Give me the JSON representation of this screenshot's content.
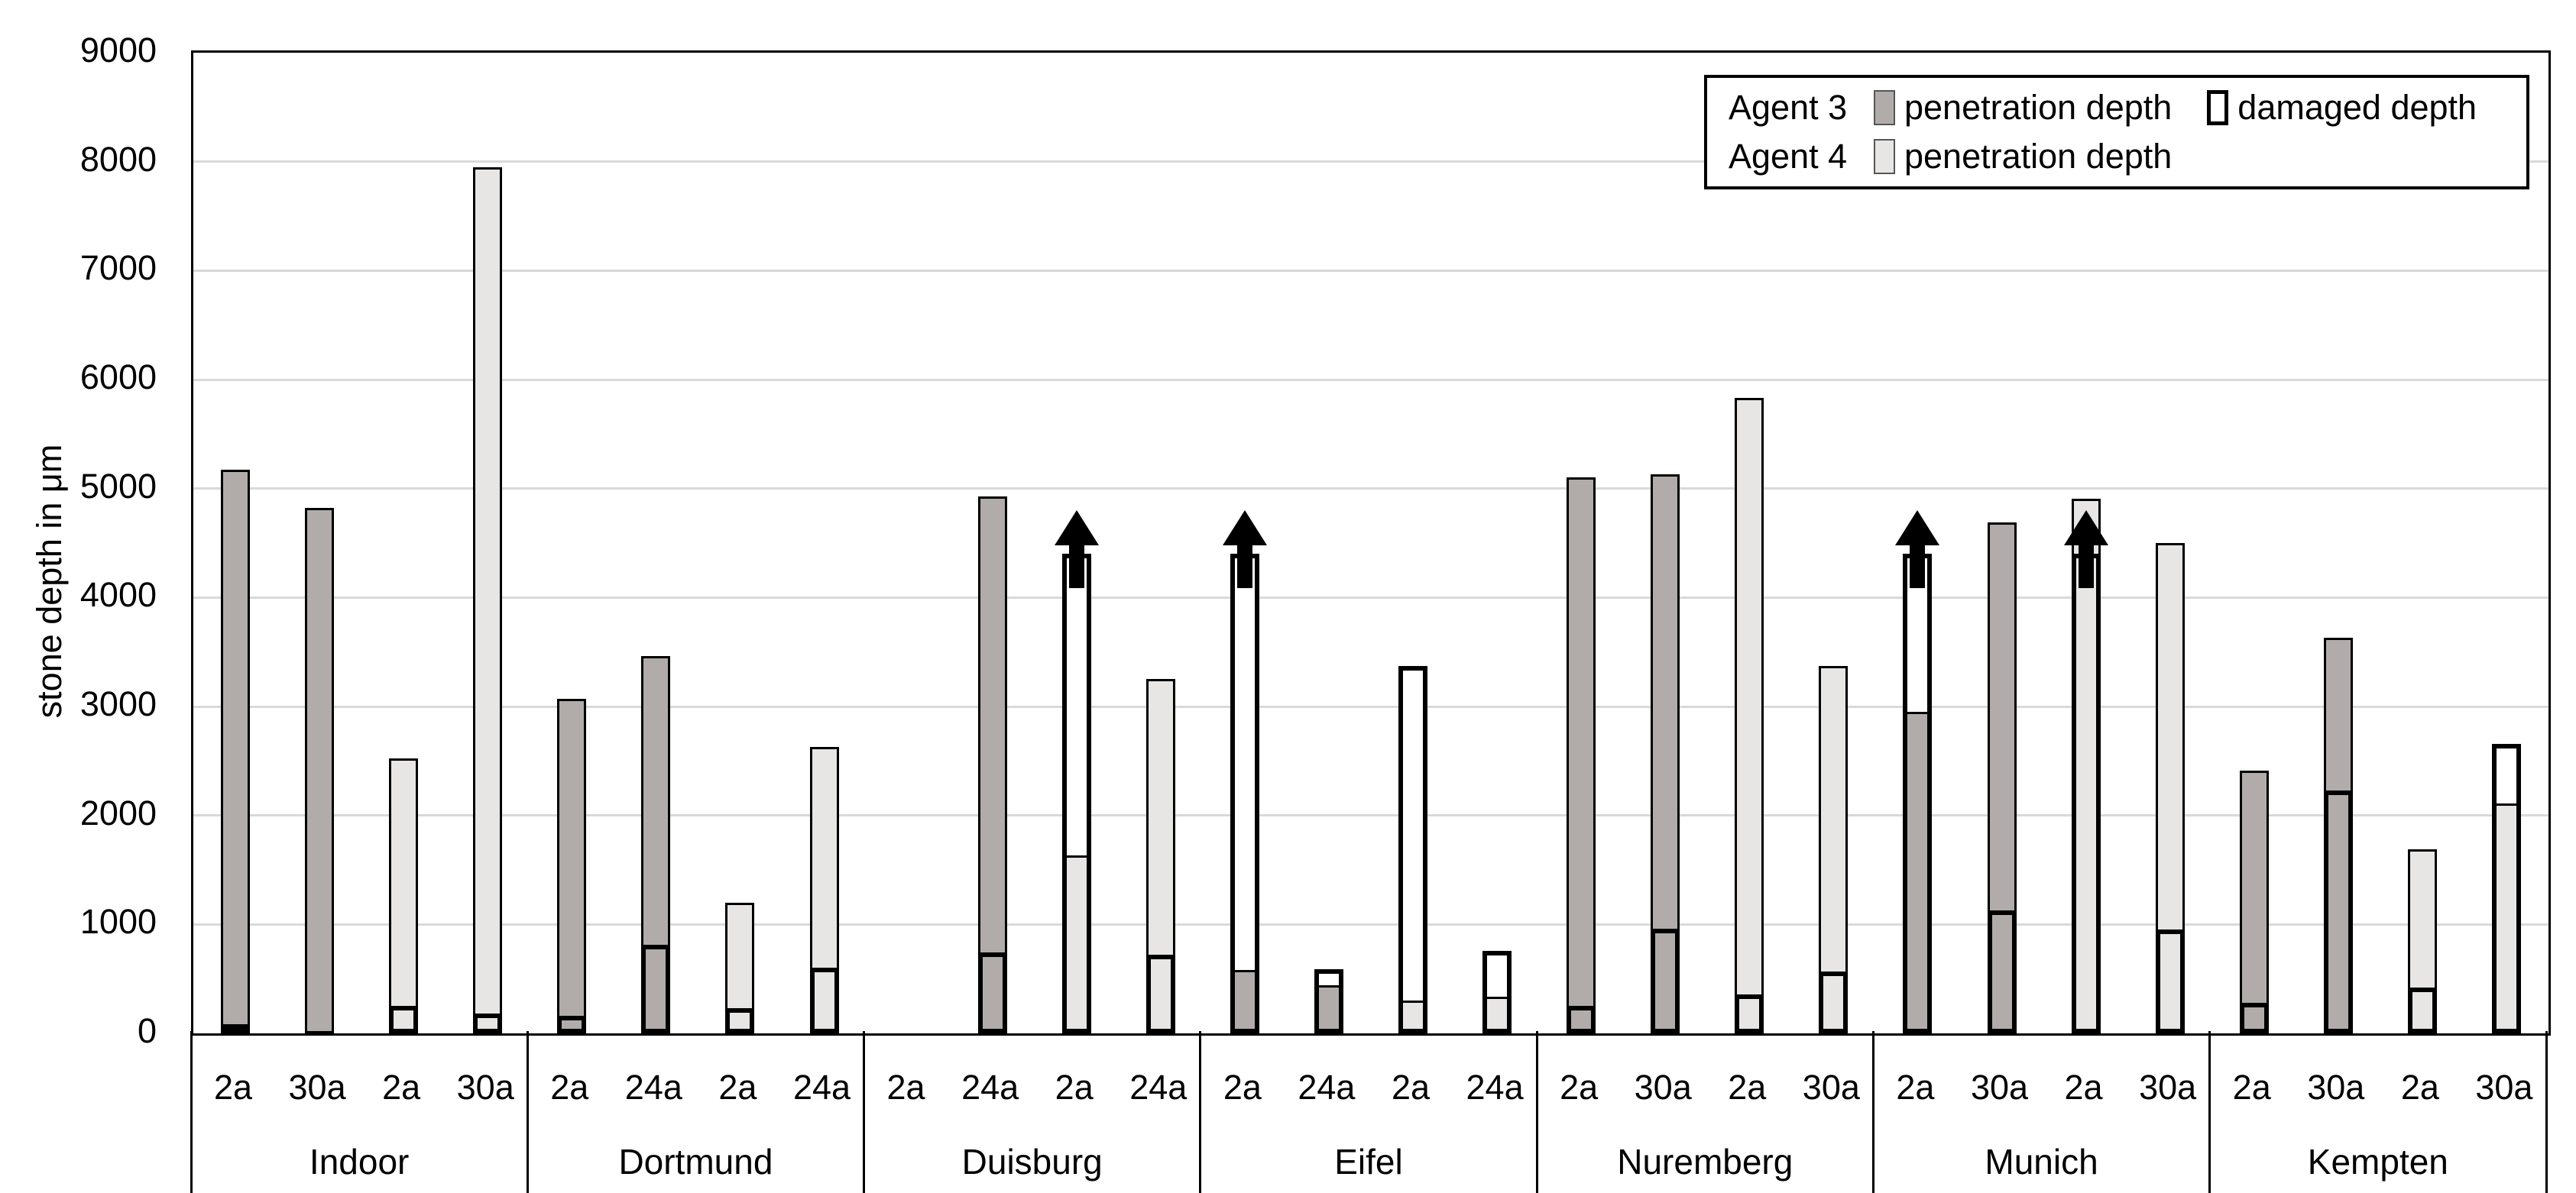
{
  "chart_data": {
    "type": "bar",
    "title": "",
    "ylabel": "stone depth in μm",
    "ylim": [
      0,
      9000
    ],
    "ytick_step": 1000,
    "yticks": [
      0,
      1000,
      2000,
      3000,
      4000,
      5000,
      6000,
      7000,
      8000,
      9000
    ],
    "unit": "μm",
    "grid": true,
    "legend_position": "top-right",
    "legend": {
      "rows": [
        {
          "agent": "Agent 3",
          "items": [
            {
              "series": "agent3_penetration",
              "swatch": "swatch-pen3",
              "label": "penetration depth"
            },
            {
              "series": "damaged",
              "swatch": "swatch-dam",
              "label": "damaged depth"
            }
          ]
        },
        {
          "agent": "Agent 4",
          "items": [
            {
              "series": "agent4_penetration",
              "swatch": "swatch-pen4",
              "label": "penetration depth"
            }
          ]
        }
      ]
    },
    "colors": {
      "agent3_fill": "#b1acaa",
      "agent4_fill": "#e7e6e5",
      "damaged_fill": "#ffffff",
      "outline": "#000000",
      "gridline": "#d9d9d9"
    },
    "groups": [
      {
        "location": "Indoor",
        "bars": [
          {
            "exposure": "2a",
            "agent": "Agent 3",
            "penetration_depth": 5170,
            "damaged_depth": 70,
            "damage_exceeds": false
          },
          {
            "exposure": "30a",
            "agent": "Agent 3",
            "penetration_depth": 4820,
            "damaged_depth": null,
            "damage_exceeds": false
          },
          {
            "exposure": "2a",
            "agent": "Agent 4",
            "penetration_depth": 2520,
            "damaged_depth": 250,
            "damage_exceeds": false
          },
          {
            "exposure": "30a",
            "agent": "Agent 4",
            "penetration_depth": 7950,
            "damaged_depth": 180,
            "damage_exceeds": false
          }
        ]
      },
      {
        "location": "Dortmund",
        "bars": [
          {
            "exposure": "2a",
            "agent": "Agent 3",
            "penetration_depth": 3070,
            "damaged_depth": 160,
            "damage_exceeds": false
          },
          {
            "exposure": "24a",
            "agent": "Agent 3",
            "penetration_depth": 3460,
            "damaged_depth": 810,
            "damage_exceeds": false
          },
          {
            "exposure": "2a",
            "agent": "Agent 4",
            "penetration_depth": 1200,
            "damaged_depth": 230,
            "damage_exceeds": false
          },
          {
            "exposure": "24a",
            "agent": "Agent 4",
            "penetration_depth": 2630,
            "damaged_depth": 600,
            "damage_exceeds": false
          }
        ]
      },
      {
        "location": "Duisburg",
        "bars": [
          {
            "exposure": "2a",
            "agent": "Agent 3",
            "penetration_depth": null,
            "damaged_depth": null,
            "damage_exceeds": false
          },
          {
            "exposure": "24a",
            "agent": "Agent 3",
            "penetration_depth": 4930,
            "damaged_depth": 740,
            "damage_exceeds": false
          },
          {
            "exposure": "2a",
            "agent": "Agent 4",
            "penetration_depth": 1630,
            "damaged_depth": 4400,
            "damage_exceeds": true
          },
          {
            "exposure": "24a",
            "agent": "Agent 4",
            "penetration_depth": 3250,
            "damaged_depth": 720,
            "damage_exceeds": false
          }
        ]
      },
      {
        "location": "Eifel",
        "bars": [
          {
            "exposure": "2a",
            "agent": "Agent 3",
            "penetration_depth": 580,
            "damaged_depth": 4400,
            "damage_exceeds": true
          },
          {
            "exposure": "24a",
            "agent": "Agent 3",
            "penetration_depth": 440,
            "damaged_depth": 590,
            "damage_exceeds": false
          },
          {
            "exposure": "2a",
            "agent": "Agent 4",
            "penetration_depth": 300,
            "damaged_depth": 3370,
            "damage_exceeds": false
          },
          {
            "exposure": "24a",
            "agent": "Agent 4",
            "penetration_depth": 340,
            "damaged_depth": 760,
            "damage_exceeds": false
          }
        ]
      },
      {
        "location": "Nuremberg",
        "bars": [
          {
            "exposure": "2a",
            "agent": "Agent 3",
            "penetration_depth": 5100,
            "damaged_depth": 250,
            "damage_exceeds": false
          },
          {
            "exposure": "30a",
            "agent": "Agent 3",
            "penetration_depth": 5130,
            "damaged_depth": 960,
            "damage_exceeds": false
          },
          {
            "exposure": "2a",
            "agent": "Agent 4",
            "penetration_depth": 5830,
            "damaged_depth": 360,
            "damage_exceeds": false
          },
          {
            "exposure": "30a",
            "agent": "Agent 4",
            "penetration_depth": 3370,
            "damaged_depth": 570,
            "damage_exceeds": false
          }
        ]
      },
      {
        "location": "Munich",
        "bars": [
          {
            "exposure": "2a",
            "agent": "Agent 3",
            "penetration_depth": 2950,
            "damaged_depth": 4400,
            "damage_exceeds": true
          },
          {
            "exposure": "30a",
            "agent": "Agent 3",
            "penetration_depth": 4690,
            "damaged_depth": 1130,
            "damage_exceeds": false
          },
          {
            "exposure": "2a",
            "agent": "Agent 4",
            "penetration_depth": 4910,
            "damaged_depth": 4400,
            "damage_exceeds": true
          },
          {
            "exposure": "30a",
            "agent": "Agent 4",
            "penetration_depth": 4500,
            "damaged_depth": 950,
            "damage_exceeds": false
          }
        ]
      },
      {
        "location": "Kempten",
        "bars": [
          {
            "exposure": "2a",
            "agent": "Agent 3",
            "penetration_depth": 2410,
            "damaged_depth": 280,
            "damage_exceeds": false
          },
          {
            "exposure": "30a",
            "agent": "Agent 3",
            "penetration_depth": 3630,
            "damaged_depth": 2230,
            "damage_exceeds": false
          },
          {
            "exposure": "2a",
            "agent": "Agent 4",
            "penetration_depth": 1690,
            "damaged_depth": 420,
            "damage_exceeds": false
          },
          {
            "exposure": "30a",
            "agent": "Agent 4",
            "penetration_depth": 2110,
            "damaged_depth": 2660,
            "damage_exceeds": false
          }
        ]
      }
    ]
  }
}
